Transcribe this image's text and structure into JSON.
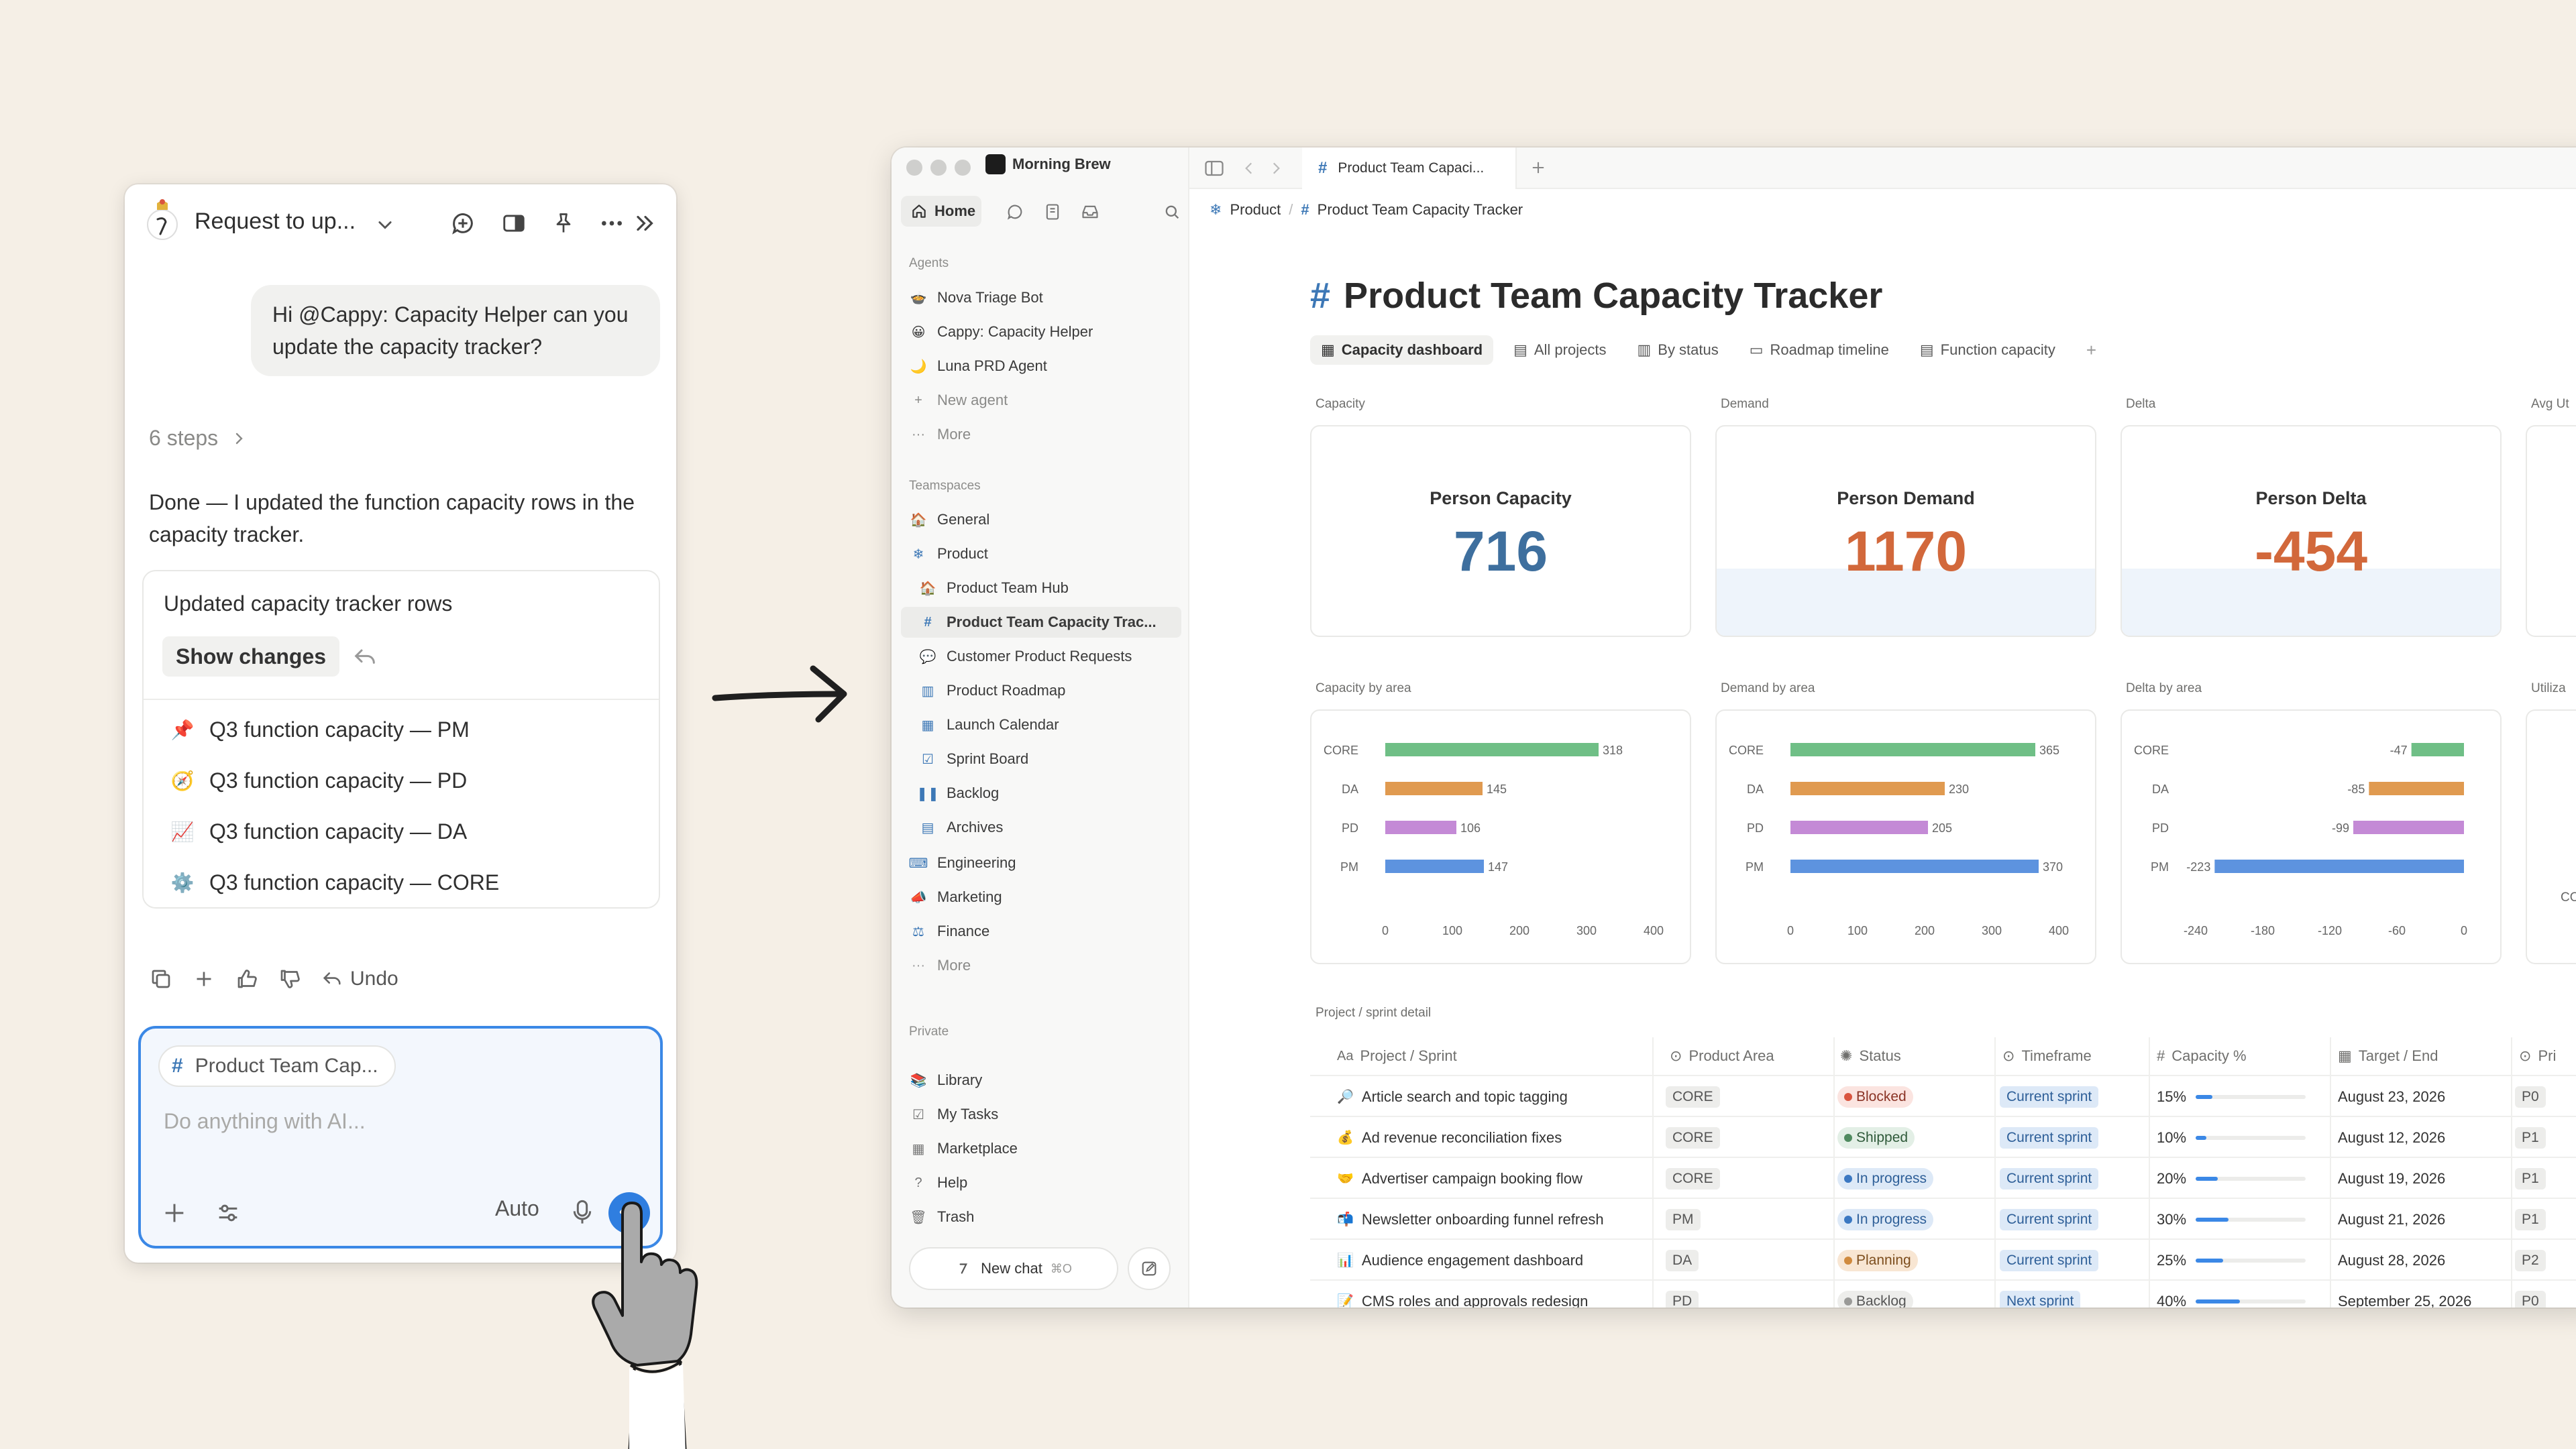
{
  "chat": {
    "title": "Request to up...",
    "user_message": "Hi @Cappy: Capacity Helper can you update the capacity tracker?",
    "steps": "6 steps",
    "response": "Done — I updated the function capacity rows in the capacity tracker.",
    "card_title": "Updated capacity tracker rows",
    "show_changes": "Show changes",
    "rows": [
      {
        "icon": "📌",
        "label": "Q3 function capacity — PM"
      },
      {
        "icon": "🧭",
        "label": "Q3 function capacity — PD"
      },
      {
        "icon": "📈",
        "label": "Q3 function capacity — DA"
      },
      {
        "icon": "⚙️",
        "label": "Q3 function capacity — CORE"
      }
    ],
    "undo": "Undo",
    "context_pill": "Product Team Cap...",
    "placeholder": "Do anything with AI...",
    "model": "Auto"
  },
  "sidebar": {
    "workspace": "Morning Brew",
    "home": "Home",
    "agents_label": "Agents",
    "agents": [
      {
        "icon": "🍲",
        "label": "Nova Triage Bot"
      },
      {
        "icon": "😀",
        "label": "Cappy: Capacity Helper"
      },
      {
        "icon": "🌙",
        "label": "Luna PRD Agent"
      },
      {
        "icon": "+",
        "label": "New agent"
      },
      {
        "icon": "···",
        "label": "More"
      }
    ],
    "teamspaces_label": "Teamspaces",
    "teamspaces": [
      {
        "icon": "🏠",
        "label": "General",
        "sub": false
      },
      {
        "icon": "❄",
        "label": "Product",
        "sub": false
      },
      {
        "icon": "🏠",
        "label": "Product Team Hub",
        "sub": true
      },
      {
        "icon": "#",
        "label": "Product Team Capacity Trac...",
        "sub": true
      },
      {
        "icon": "💬",
        "label": "Customer Product Requests",
        "sub": true
      },
      {
        "icon": "▥",
        "label": "Product Roadmap",
        "sub": true
      },
      {
        "icon": "▦",
        "label": "Launch Calendar",
        "sub": true
      },
      {
        "icon": "☑",
        "label": "Sprint Board",
        "sub": true
      },
      {
        "icon": "❚❚",
        "label": "Backlog",
        "sub": true
      },
      {
        "icon": "▤",
        "label": "Archives",
        "sub": true
      }
    ],
    "teamspaces2": [
      {
        "icon": "⌨",
        "label": "Engineering"
      },
      {
        "icon": "📣",
        "label": "Marketing"
      },
      {
        "icon": "⚖",
        "label": "Finance"
      },
      {
        "icon": "···",
        "label": "More"
      }
    ],
    "private_label": "Private",
    "private": [
      {
        "icon": "📚",
        "label": "Library"
      },
      {
        "icon": "☑",
        "label": "My Tasks"
      },
      {
        "icon": "▦",
        "label": "Marketplace"
      },
      {
        "icon": "?",
        "label": "Help"
      },
      {
        "icon": "🗑",
        "label": "Trash"
      }
    ],
    "new_chat": "New chat",
    "new_chat_kbd": "⌘O"
  },
  "page": {
    "tab_title": "Product Team Capaci...",
    "breadcrumb_parent": "Product",
    "breadcrumb_current": "Product Team Capacity Tracker",
    "title": "Product Team Capacity Tracker",
    "views": [
      "Capacity dashboard",
      "All projects",
      "By status",
      "Roadmap timeline",
      "Function capacity"
    ],
    "groups": {
      "capacity": "Capacity",
      "demand": "Demand",
      "delta": "Delta",
      "avg": "Avg Ut"
    },
    "kpis": [
      {
        "label": "Person Capacity",
        "value": "716",
        "color": "#3e6f9e"
      },
      {
        "label": "Person Demand",
        "value": "1170",
        "color": "#d2683b"
      },
      {
        "label": "Person Delta",
        "value": "-454",
        "color": "#d2683b"
      }
    ],
    "chart_groups": {
      "capacity": "Capacity by area",
      "demand": "Demand by area",
      "delta": "Delta by area",
      "util": "Utiliza"
    },
    "util_partial_tick": "CO",
    "table_group": "Project / sprint detail",
    "columns": [
      "Project / Sprint",
      "Product Area",
      "Status",
      "Timeframe",
      "Capacity %",
      "Target / End",
      "Pri"
    ],
    "rows": [
      {
        "icon": "🔎",
        "name": "Article search and topic tagging",
        "area": "CORE",
        "status": "Blocked",
        "timeframe": "Current sprint",
        "capacity": "15%",
        "cap_frac": 0.15,
        "date": "August 23, 2026",
        "pri": "P0"
      },
      {
        "icon": "💰",
        "name": "Ad revenue reconciliation fixes",
        "area": "CORE",
        "status": "Shipped",
        "timeframe": "Current sprint",
        "capacity": "10%",
        "cap_frac": 0.1,
        "date": "August 12, 2026",
        "pri": "P1"
      },
      {
        "icon": "🤝",
        "name": "Advertiser campaign booking flow",
        "area": "CORE",
        "status": "In progress",
        "timeframe": "Current sprint",
        "capacity": "20%",
        "cap_frac": 0.2,
        "date": "August 19, 2026",
        "pri": "P1"
      },
      {
        "icon": "📬",
        "name": "Newsletter onboarding funnel refresh",
        "area": "PM",
        "status": "In progress",
        "timeframe": "Current sprint",
        "capacity": "30%",
        "cap_frac": 0.3,
        "date": "August 21, 2026",
        "pri": "P1"
      },
      {
        "icon": "📊",
        "name": "Audience engagement dashboard",
        "area": "DA",
        "status": "Planning",
        "timeframe": "Current sprint",
        "capacity": "25%",
        "cap_frac": 0.25,
        "date": "August 28, 2026",
        "pri": "P2"
      },
      {
        "icon": "📝",
        "name": "CMS roles and approvals redesign",
        "area": "PD",
        "status": "Backlog",
        "timeframe": "Next sprint",
        "capacity": "40%",
        "cap_frac": 0.4,
        "date": "September 25, 2026",
        "pri": "P0"
      }
    ],
    "status_colors": {
      "Blocked": {
        "bg": "#fbe4e0",
        "dot": "#d9553f",
        "fg": "#8a3325"
      },
      "Shipped": {
        "bg": "#e3efe6",
        "dot": "#4f8a5f",
        "fg": "#2f5a3a"
      },
      "In progress": {
        "bg": "#dde9f7",
        "dot": "#3b78c2",
        "fg": "#2e5f98"
      },
      "Planning": {
        "bg": "#f8e6d3",
        "dot": "#d08a3d",
        "fg": "#7c4d1c"
      },
      "Backlog": {
        "bg": "#ededeb",
        "dot": "#9a9a98",
        "fg": "#555555"
      }
    }
  },
  "chart_data": [
    {
      "type": "bar",
      "orientation": "horizontal",
      "categories": [
        "CORE",
        "DA",
        "PD",
        "PM"
      ],
      "values": [
        318,
        145,
        106,
        147
      ],
      "xlim": [
        0,
        400
      ],
      "xticks": [
        0,
        100,
        200,
        300,
        400
      ],
      "colors": [
        "#6fbf86",
        "#e09a50",
        "#c48ad6",
        "#5d93df"
      ]
    },
    {
      "type": "bar",
      "orientation": "horizontal",
      "categories": [
        "CORE",
        "DA",
        "PD",
        "PM"
      ],
      "values": [
        365,
        230,
        205,
        370
      ],
      "xlim": [
        0,
        400
      ],
      "xticks": [
        0,
        100,
        200,
        300,
        400
      ],
      "colors": [
        "#6fbf86",
        "#e09a50",
        "#c48ad6",
        "#5d93df"
      ]
    },
    {
      "type": "bar",
      "orientation": "horizontal",
      "categories": [
        "CORE",
        "DA",
        "PD",
        "PM"
      ],
      "values": [
        -47,
        -85,
        -99,
        -223
      ],
      "xlim": [
        -240,
        0
      ],
      "xticks": [
        -240,
        -180,
        -120,
        -60,
        0
      ],
      "colors": [
        "#6fbf86",
        "#e09a50",
        "#c48ad6",
        "#5d93df"
      ]
    }
  ]
}
